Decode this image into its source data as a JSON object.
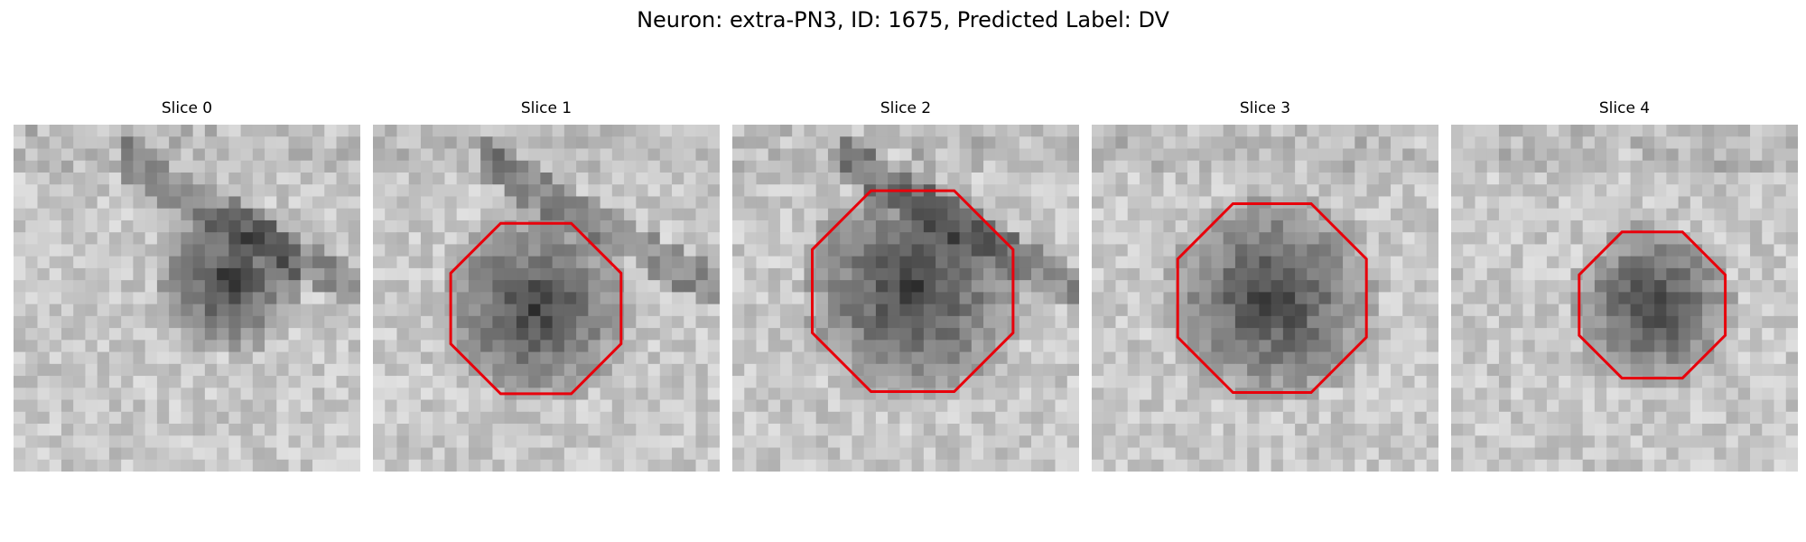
{
  "figure": {
    "title": "Neuron: extra-PN3, ID: 1675, Predicted Label: DV",
    "outline_color": "#e8000b",
    "colormap": "gray"
  },
  "slices": [
    {
      "label": "Slice 0",
      "has_outline": false,
      "blob": [
        0.62,
        0.45,
        0.22
      ],
      "dark_streak": true
    },
    {
      "label": "Slice 1",
      "has_outline": true,
      "blob": [
        0.47,
        0.53,
        0.28
      ],
      "dark_streak": true
    },
    {
      "label": "Slice 2",
      "has_outline": true,
      "blob": [
        0.52,
        0.48,
        0.33
      ],
      "dark_streak": true
    },
    {
      "label": "Slice 3",
      "has_outline": true,
      "blob": [
        0.52,
        0.5,
        0.31
      ],
      "dark_streak": false
    },
    {
      "label": "Slice 4",
      "has_outline": true,
      "blob": [
        0.58,
        0.52,
        0.24
      ],
      "dark_streak": false
    }
  ]
}
